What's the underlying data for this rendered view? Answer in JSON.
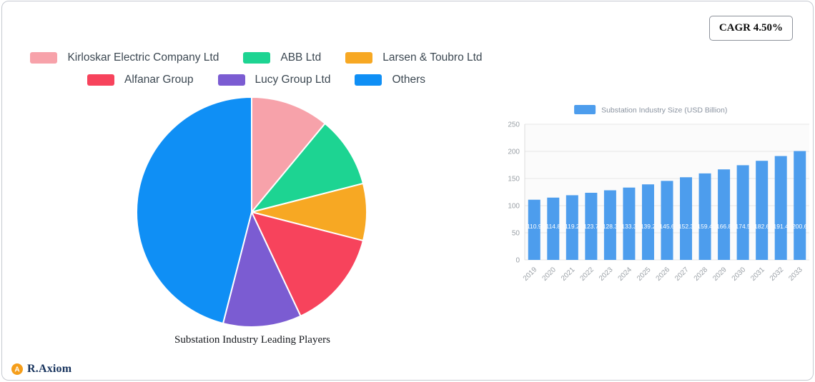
{
  "badge": {
    "cagr": "CAGR 4.50%"
  },
  "footer": {
    "brand": "R.Axiom"
  },
  "chart_data": [
    {
      "type": "pie",
      "title": "Substation Industry Leading Players",
      "labels": [
        "Kirloskar Electric Company Ltd",
        "ABB Ltd",
        "Larsen & Toubro Ltd",
        "Alfanar Group",
        "Lucy Group Ltd",
        "Others"
      ],
      "values": [
        11,
        10,
        8,
        14,
        11,
        46
      ],
      "colors": [
        "#f7a2aa",
        "#1dd492",
        "#f7a823",
        "#f7435c",
        "#7b5cd2",
        "#0f8ff5"
      ],
      "legend_rows": [
        [
          0,
          1,
          2
        ],
        [
          3,
          4,
          5
        ]
      ],
      "start_angle_deg": -90,
      "direction": "clockwise"
    },
    {
      "type": "bar",
      "legend": "Substation Industry Size (USD Billion)",
      "categories": [
        "2019",
        "2020",
        "2021",
        "2022",
        "2023",
        "2024",
        "2025",
        "2026",
        "2027",
        "2028",
        "2029",
        "2030",
        "2031",
        "2032",
        "2033"
      ],
      "values": [
        110.9,
        114.8,
        119.2,
        123.7,
        128.3,
        133.3,
        139.2,
        145.6,
        152.3,
        159.4,
        166.8,
        174.5,
        182.6,
        191.4,
        200.6
      ],
      "bar_color": "#4d9ded",
      "ylim": [
        0,
        250
      ],
      "yticks": [
        0,
        50,
        100,
        150,
        200,
        250
      ],
      "grid": true,
      "legend_position": "top"
    }
  ]
}
